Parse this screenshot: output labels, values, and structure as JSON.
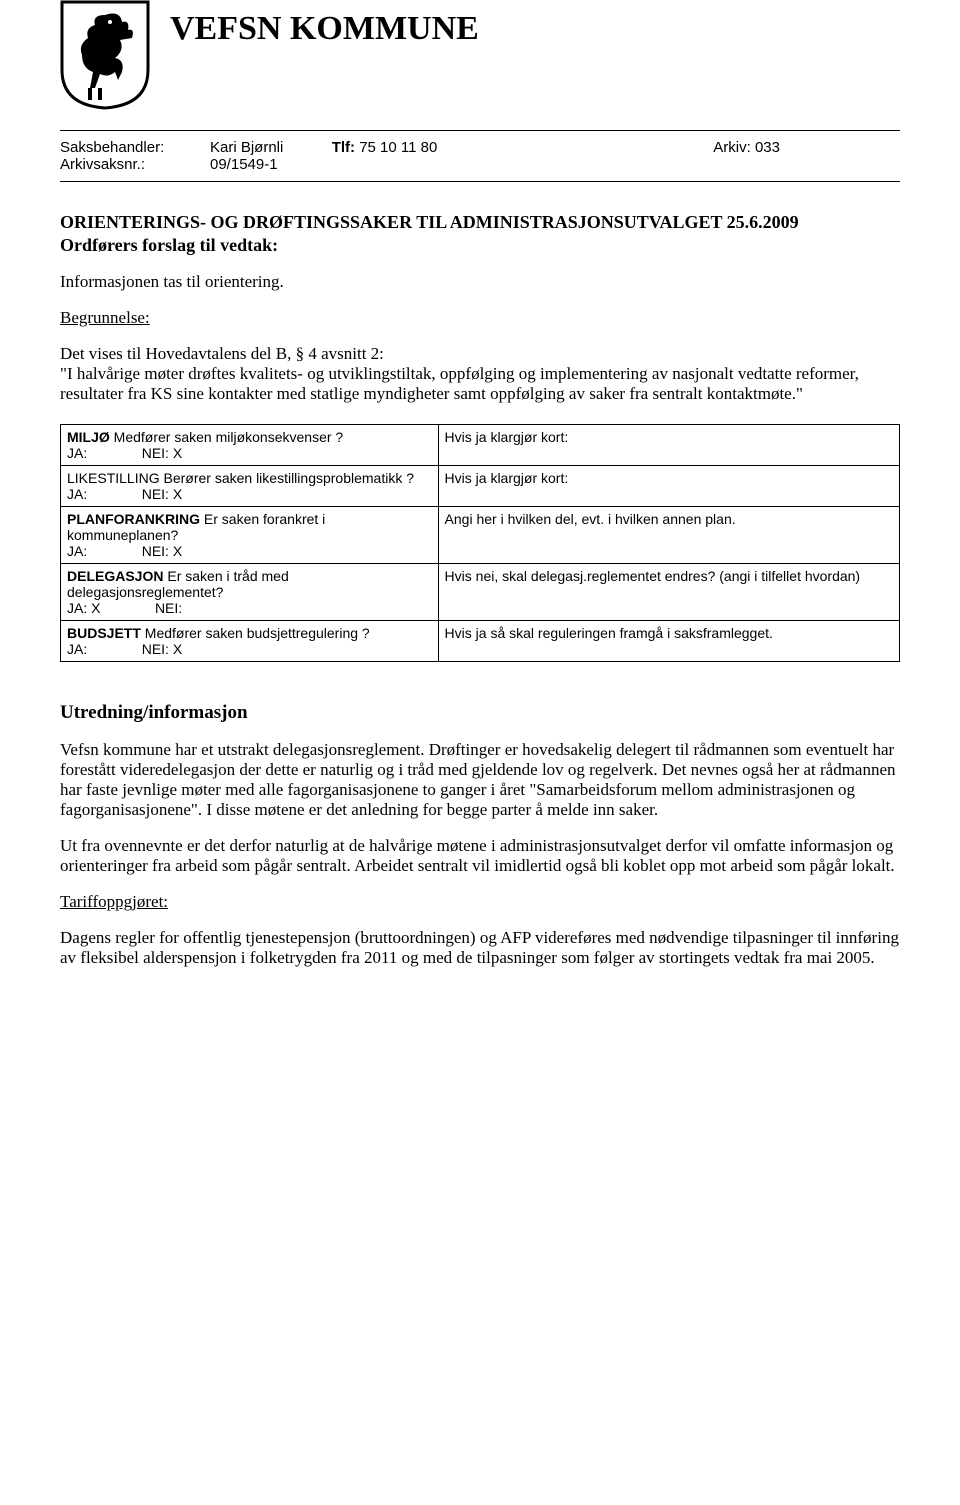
{
  "header": {
    "kommune": "VEFSN KOMMUNE"
  },
  "meta": {
    "saksbehandler_label": "Saksbehandler:",
    "saksbehandler": "Kari Bjørnli",
    "tlf_label": "Tlf:",
    "tlf": "75 10 11 80",
    "arkiv_label": "Arkiv:",
    "arkiv": "033",
    "arkivsaksnr_label": "Arkivsaksnr.:",
    "arkivsaksnr": "09/1549-1"
  },
  "title": {
    "line1": "ORIENTERINGS- OG DRØFTINGSSAKER TIL ADMINISTRASJONSUTVALGET 25.6.2009",
    "line2": "Ordførers forslag til vedtak:"
  },
  "intro": "Informasjonen tas til orientering.",
  "begrunnelse_label": "Begrunnelse:",
  "begrunnelse_body": "Det vises til Hovedavtalens del B, § 4 avsnitt 2:\n\"I halvårige møter drøftes kvalitets- og utviklingstiltak, oppfølging og implementering av nasjonalt vedtatte reformer, resultater fra KS sine kontakter med statlige myndigheter samt oppfølging av saker fra sentralt kontaktmøte.\"",
  "table": {
    "rows": [
      {
        "q_pre": "MILJØ",
        "q_rest": "  Medfører saken miljøkonsekvenser ?",
        "ja": "JA:",
        "nei": "NEI: X",
        "right": "Hvis ja klargjør kort:"
      },
      {
        "q_pre": "",
        "q_rest": "LIKESTILLING Berører saken likestillingsproblematikk ?",
        "ja": "JA:",
        "nei": "NEI: X",
        "right": "Hvis ja klargjør kort:"
      },
      {
        "q_pre": "PLANFORANKRING",
        "q_rest": "   Er saken forankret i kommuneplanen?",
        "ja": "JA:",
        "nei": "NEI: X",
        "right": "Angi  her  i hvilken del,  evt. i hvilken annen plan."
      },
      {
        "q_pre": "DELEGASJON",
        "q_rest": " Er saken i tråd  med delegasjonsreglementet?",
        "ja": "JA:        X",
        "nei": "NEI:",
        "right": "Hvis nei, skal delegasj.reglementet endres? (angi i tilfellet hvordan)"
      },
      {
        "q_pre": "BUDSJETT",
        "q_rest": " Medfører saken budsjettregulering ?",
        "ja": "JA:",
        "nei": "NEI: X",
        "right": "Hvis ja så skal reguleringen framgå i saksframlegget."
      }
    ]
  },
  "utredning": {
    "heading": "Utredning/informasjon",
    "p1": "Vefsn kommune har et utstrakt delegasjonsreglement.  Drøftinger er hovedsakelig delegert til rådmannen som eventuelt har forestått videredelegasjon der dette er naturlig og i tråd med gjeldende lov og regelverk.  Det nevnes også her at rådmannen har faste jevnlige møter med alle fagorganisasjonene to ganger i året \"Samarbeidsforum mellom administrasjonen og fagorganisasjonene\".  I disse møtene er det anledning for begge parter å melde inn saker.",
    "p2": "Ut fra ovennevnte er det derfor naturlig at de halvårige møtene i administrasjonsutvalget derfor vil omfatte informasjon og orienteringer fra arbeid som pågår sentralt.  Arbeidet sentralt vil imidlertid også bli koblet opp mot arbeid som pågår lokalt.",
    "tariff_label": "Tariffoppgjøret:",
    "p3": "Dagens regler for offentlig tjenestepensjon (bruttoordningen) og AFP videreføres med nødvendige tilpasninger til innføring av fleksibel alderspensjon i folketrygden fra 2011 og med de tilpasninger som følger av stortingets vedtak fra mai 2005."
  }
}
